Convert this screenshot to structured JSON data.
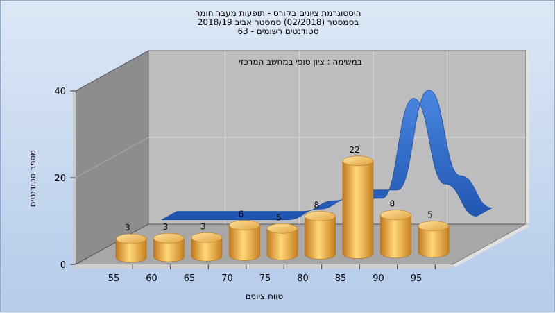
{
  "chart_data": {
    "type": "bar",
    "title": [
      "היסטוגרמת ציונים בקורס - תופעות מעבר חומר",
      "בסמסטר  (02/2018)  סמסטר אביב 2018/19",
      "סטודנטים רשומים - 63"
    ],
    "subtitle": "במשימה : ציון סופי במחשב המרכזי",
    "xlabel": "טווח ציונים",
    "ylabel": "מספר סטודנטים",
    "categories": [
      "55",
      "60",
      "65",
      "70",
      "75",
      "80",
      "85",
      "90",
      "95"
    ],
    "values": [
      3,
      3,
      3,
      6,
      5,
      8,
      22,
      8,
      5
    ],
    "yticks": [
      "0",
      "20",
      "40"
    ],
    "ylim": [
      0,
      40
    ],
    "distribution_curve": {
      "x": [
        50,
        60,
        70,
        75,
        80,
        85,
        90,
        95,
        100
      ],
      "y": [
        1,
        1,
        1,
        2.5,
        4,
        4,
        18,
        6,
        1.5
      ]
    },
    "grid": true,
    "colors": {
      "bar": "#e8a434",
      "curve": "#2a64c4",
      "back_wall": "#bebebe",
      "side_wall": "#8a8a8a",
      "floor": "#a9a9a9"
    }
  }
}
